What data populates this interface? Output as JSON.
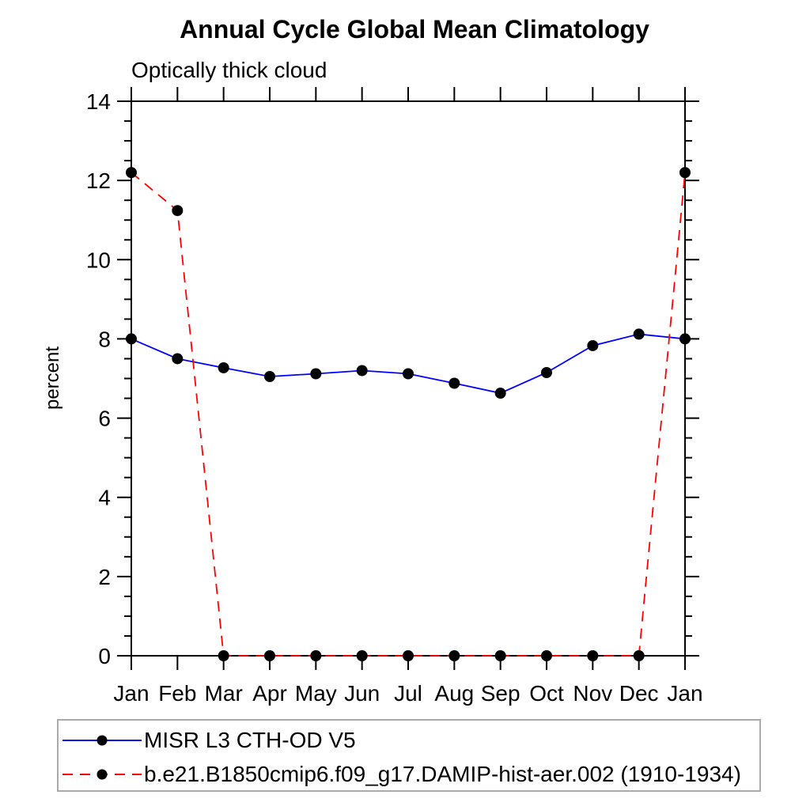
{
  "chart_data": {
    "type": "line",
    "title": "Annual Cycle Global Mean Climatology",
    "subtitle": "Optically thick cloud",
    "ylabel": "percent",
    "xlabel": "",
    "x_categories": [
      "Jan",
      "Feb",
      "Mar",
      "Apr",
      "May",
      "Jun",
      "Jul",
      "Aug",
      "Sep",
      "Oct",
      "Nov",
      "Dec",
      "Jan"
    ],
    "ylim": [
      0,
      14
    ],
    "ytick_step": 2,
    "yminor_step": 0.5,
    "ytick_labels": [
      "0",
      "2",
      "4",
      "6",
      "8",
      "10",
      "12",
      "14"
    ],
    "grid": "off",
    "legend_position": "bottom-left-box",
    "axis_color": "#000000",
    "marker_color": "#000000",
    "series": [
      {
        "name": "MISR L3 CTH-OD V5",
        "color": "#0000ff",
        "style": "solid",
        "marker": "filled-circle",
        "values": [
          8.0,
          7.5,
          7.27,
          7.05,
          7.12,
          7.2,
          7.12,
          6.88,
          6.63,
          7.15,
          7.83,
          8.12,
          8.0
        ]
      },
      {
        "name": "b.e21.B1850cmip6.f09_g17.DAMIP-hist-aer.002 (1910-1934)",
        "color": "#ff0000",
        "style": "dashed",
        "marker": "filled-circle",
        "values": [
          12.2,
          11.24,
          0,
          0,
          0,
          0,
          0,
          0,
          0,
          0,
          0,
          0,
          12.2
        ]
      }
    ]
  }
}
